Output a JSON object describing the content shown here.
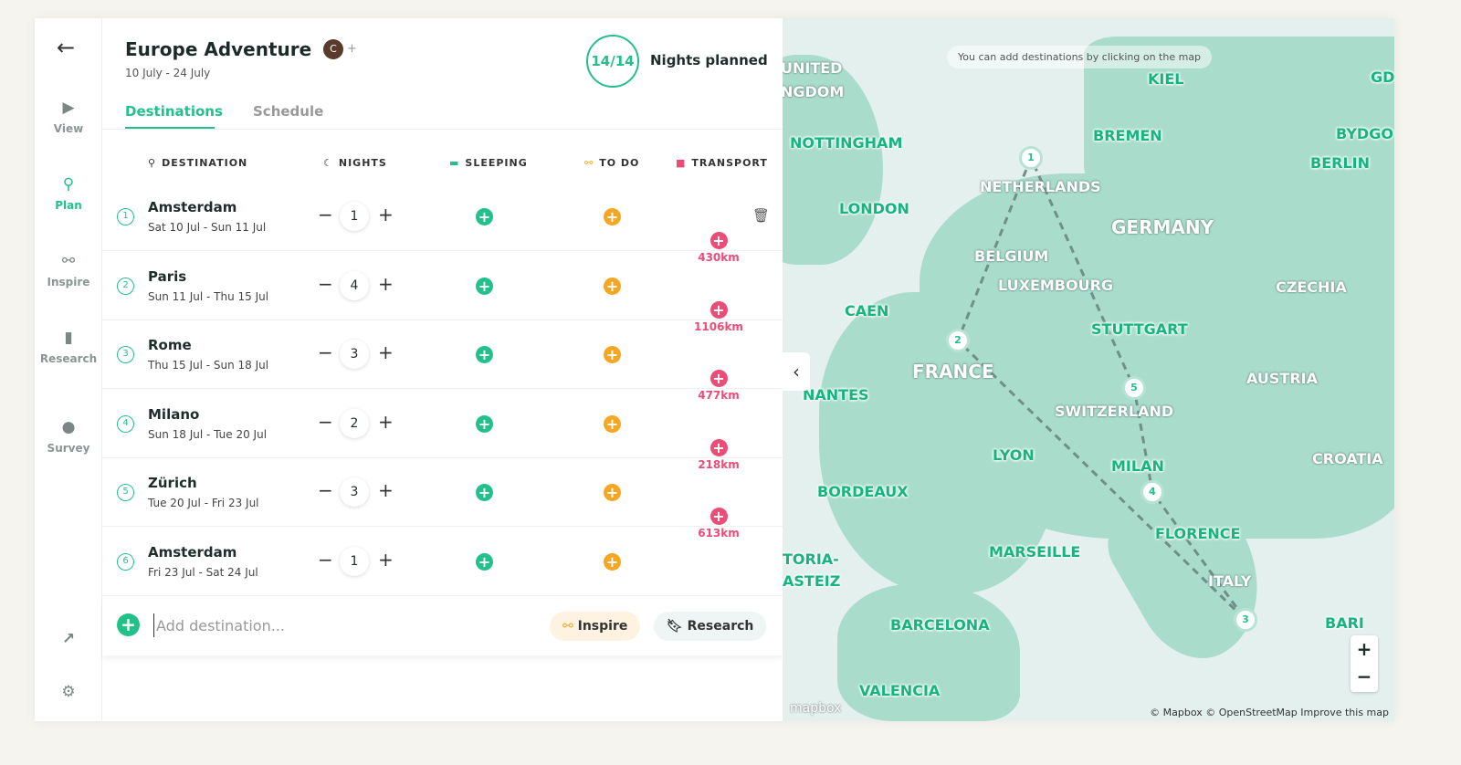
{
  "sidebar": {
    "items": [
      {
        "label": "View",
        "icon": "play-circle-icon"
      },
      {
        "label": "Plan",
        "icon": "map-pin-icon",
        "active": true
      },
      {
        "label": "Inspire",
        "icon": "binoculars-icon"
      },
      {
        "label": "Research",
        "icon": "bookmark-icon"
      },
      {
        "label": "Survey",
        "icon": "chat-bubble-icon"
      }
    ]
  },
  "header": {
    "title": "Europe Adventure",
    "avatar_initial": "C",
    "dates": "10 July - 24 July",
    "nights_ratio": "14/14",
    "nights_label": "Nights planned"
  },
  "tabs": [
    {
      "label": "Destinations",
      "active": true
    },
    {
      "label": "Schedule"
    }
  ],
  "columns": [
    "DESTINATION",
    "NIGHTS",
    "SLEEPING",
    "TO DO",
    "TRANSPORT"
  ],
  "rows": [
    {
      "n": "1",
      "city": "Amsterdam",
      "range": "Sat 10 Jul - Sun 11 Jul",
      "nights": "1"
    },
    {
      "n": "2",
      "city": "Paris",
      "range": "Sun 11 Jul - Thu 15 Jul",
      "nights": "4"
    },
    {
      "n": "3",
      "city": "Rome",
      "range": "Thu 15 Jul - Sun 18 Jul",
      "nights": "3"
    },
    {
      "n": "4",
      "city": "Milano",
      "range": "Sun 18 Jul - Tue 20 Jul",
      "nights": "2"
    },
    {
      "n": "5",
      "city": "Zürich",
      "range": "Tue 20 Jul - Fri 23 Jul",
      "nights": "3"
    },
    {
      "n": "6",
      "city": "Amsterdam",
      "range": "Fri 23 Jul - Sat 24 Jul",
      "nights": "1"
    }
  ],
  "transport": [
    "430km",
    "1106km",
    "477km",
    "218km",
    "613km"
  ],
  "add": {
    "placeholder": "Add destination...",
    "inspire": "Inspire",
    "research": "Research"
  },
  "map": {
    "hint": "You can add destinations by clicking on the map",
    "attribution": "© Mapbox © OpenStreetMap Improve this map",
    "logo": "mapbox",
    "countries": [
      "UNITED",
      "NGDOM",
      "GERMANY",
      "BELGIUM",
      "LUXEMBOURG",
      "FRANCE",
      "SWITZERLAND",
      "CZECHIA",
      "AUSTRIA",
      "CROATIA",
      "ITALY",
      "NETHERLANDS"
    ],
    "cities": [
      "KIEL",
      "NOTTINGHAM",
      "BREMEN",
      "BERLIN",
      "BYDGO",
      "LONDON",
      "CAEN",
      "STUTTGART",
      "NANTES",
      "LYON",
      "MILAN",
      "BORDEAUX",
      "FLORENCE",
      "MARSEILLE",
      "TORIA-",
      "ASTEIZ",
      "BARCELONA",
      "VALENCIA",
      "BARI",
      "GD"
    ],
    "markers": [
      "1",
      "2",
      "5",
      "4",
      "3"
    ]
  },
  "colors": {
    "accent": "#23c08a",
    "todo": "#f5a623",
    "transport": "#ea4d78",
    "land": "#a9dccb",
    "sea": "#e3f0ee"
  }
}
